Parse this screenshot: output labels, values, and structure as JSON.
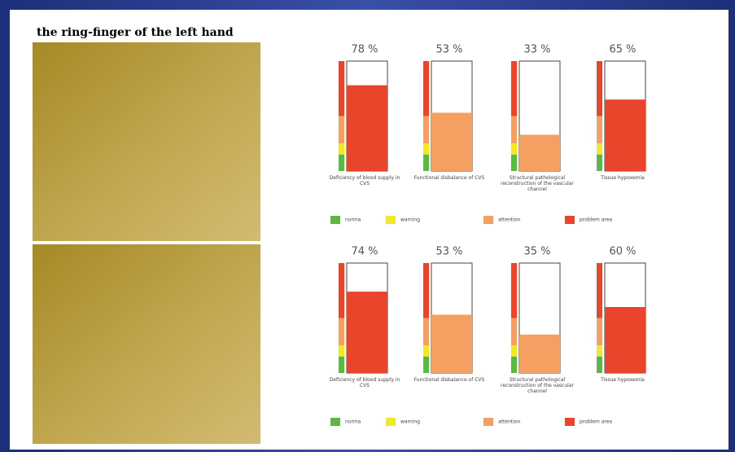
{
  "header": {
    "title": "the ring-finger of the left hand"
  },
  "chart_data": [
    {
      "type": "bar",
      "categories": [
        "Deficiency of blood supply in CVS",
        "Functional disbalance of CVS",
        "Structural pathological reconstruction of the vascular channel",
        "Tissue hypoxemia"
      ],
      "values": [
        78,
        53,
        33,
        65
      ],
      "value_labels": [
        "78 %",
        "53 %",
        "33 %",
        "65 %"
      ],
      "colors": [
        "#e8452a",
        "#f4a062",
        "#f4a062",
        "#e8452a"
      ],
      "ylim": [
        0,
        100
      ],
      "legend": [
        {
          "name": "norma",
          "color": "#5cb845"
        },
        {
          "name": "warning",
          "color": "#f2e82a"
        },
        {
          "name": "attention",
          "color": "#f4a062"
        },
        {
          "name": "problem area",
          "color": "#e8452a"
        }
      ]
    },
    {
      "type": "bar",
      "categories": [
        "Deficiency of blood supply in CVS",
        "Functional disbalance of CVS",
        "Structural pathological reconstruction of the vascular channel",
        "Tissue hypoxemia"
      ],
      "values": [
        74,
        53,
        35,
        60
      ],
      "value_labels": [
        "74 %",
        "53 %",
        "35 %",
        "60 %"
      ],
      "colors": [
        "#e8452a",
        "#f4a062",
        "#f4a062",
        "#e8452a"
      ],
      "ylim": [
        0,
        100
      ],
      "legend": [
        {
          "name": "norma",
          "color": "#5cb845"
        },
        {
          "name": "warning",
          "color": "#f2e82a"
        },
        {
          "name": "attention",
          "color": "#f4a062"
        },
        {
          "name": "problem area",
          "color": "#e8452a"
        }
      ]
    }
  ]
}
